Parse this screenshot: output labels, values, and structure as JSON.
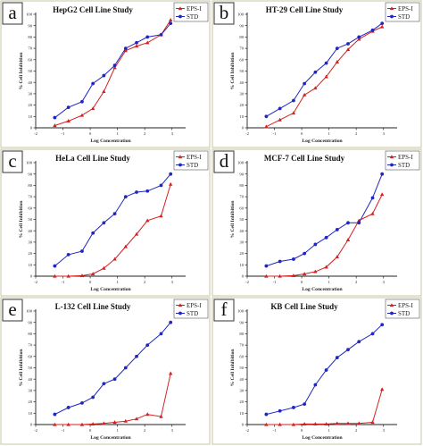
{
  "chart_data": [
    {
      "type": "line",
      "panel": "a",
      "title": "HepG2 Cell Line Study",
      "xlabel": "Log Concentration",
      "ylabel": "% Cell Inhibition",
      "xlim": [
        -2,
        3.5
      ],
      "ylim": [
        0,
        100
      ],
      "xticks": [
        -2,
        -1,
        0,
        1,
        2,
        3
      ],
      "yticks": [
        0,
        10,
        20,
        30,
        40,
        50,
        60,
        70,
        80,
        90,
        100
      ],
      "legend_position": "top-right",
      "x": [
        -1.3,
        -0.8,
        -0.3,
        0.1,
        0.5,
        0.9,
        1.3,
        1.7,
        2.1,
        2.6,
        2.95
      ],
      "series": [
        {
          "name": "EPS-I",
          "color": "#d42020",
          "marker": "triangle",
          "values": [
            2,
            6,
            11,
            17,
            32,
            53,
            68,
            72,
            75,
            82,
            95
          ]
        },
        {
          "name": "STD",
          "color": "#2026c0",
          "marker": "circle",
          "values": [
            9,
            18,
            23,
            39,
            46,
            55,
            70,
            75,
            80,
            82,
            92
          ]
        }
      ]
    },
    {
      "type": "line",
      "panel": "b",
      "title": "HT-29 Cell Line Study",
      "xlabel": "Log Concentration",
      "ylabel": "% Cell Inhibition",
      "xlim": [
        -2,
        3.5
      ],
      "ylim": [
        0,
        100
      ],
      "xticks": [
        -2,
        -1,
        0,
        1,
        2,
        3
      ],
      "yticks": [
        0,
        10,
        20,
        30,
        40,
        50,
        60,
        70,
        80,
        90,
        100
      ],
      "legend_position": "top-right",
      "x": [
        -1.3,
        -0.8,
        -0.3,
        0.1,
        0.5,
        0.9,
        1.3,
        1.7,
        2.1,
        2.6,
        2.95
      ],
      "series": [
        {
          "name": "EPS-I",
          "color": "#d42020",
          "marker": "triangle",
          "values": [
            1,
            7,
            13,
            29,
            35,
            45,
            58,
            69,
            78,
            85,
            89
          ]
        },
        {
          "name": "STD",
          "color": "#2026c0",
          "marker": "circle",
          "values": [
            10,
            17,
            24,
            39,
            49,
            57,
            70,
            74,
            80,
            86,
            92
          ]
        }
      ]
    },
    {
      "type": "line",
      "panel": "c",
      "title": "HeLa Cell Line Study",
      "xlabel": "Log Concentration",
      "ylabel": "% Cell Inhibition",
      "xlim": [
        -2,
        3.5
      ],
      "ylim": [
        0,
        100
      ],
      "xticks": [
        -2,
        -1,
        0,
        1,
        2,
        3
      ],
      "yticks": [
        0,
        10,
        20,
        30,
        40,
        50,
        60,
        70,
        80,
        90,
        100
      ],
      "legend_position": "top-right",
      "x": [
        -1.3,
        -0.8,
        -0.3,
        0.1,
        0.5,
        0.9,
        1.3,
        1.7,
        2.1,
        2.6,
        2.95
      ],
      "series": [
        {
          "name": "EPS-I",
          "color": "#d42020",
          "marker": "triangle",
          "values": [
            0,
            0,
            0.5,
            2,
            7,
            15,
            26,
            37,
            49,
            53,
            81
          ]
        },
        {
          "name": "STD",
          "color": "#2026c0",
          "marker": "circle",
          "values": [
            9,
            19,
            22,
            38,
            47,
            55,
            70,
            74,
            75,
            80,
            90
          ]
        }
      ]
    },
    {
      "type": "line",
      "panel": "d",
      "title": "MCF-7 Cell Line Study",
      "xlabel": "Log Concentration",
      "ylabel": "% Cell Inhibition",
      "xlim": [
        -2,
        3.5
      ],
      "ylim": [
        0,
        100
      ],
      "xticks": [
        -2,
        -1,
        0,
        1,
        2,
        3
      ],
      "yticks": [
        0,
        10,
        20,
        30,
        40,
        50,
        60,
        70,
        80,
        90,
        100
      ],
      "legend_position": "top-right",
      "x": [
        -1.3,
        -0.8,
        -0.3,
        0.1,
        0.5,
        0.9,
        1.3,
        1.7,
        2.1,
        2.6,
        2.95
      ],
      "series": [
        {
          "name": "EPS-I",
          "color": "#d42020",
          "marker": "triangle",
          "values": [
            0,
            0,
            0.5,
            2,
            4,
            8,
            17,
            32,
            49,
            55,
            72
          ]
        },
        {
          "name": "STD",
          "color": "#2026c0",
          "marker": "circle",
          "values": [
            9,
            13,
            15,
            20,
            28,
            34,
            41,
            47,
            47,
            69,
            90
          ]
        }
      ]
    },
    {
      "type": "line",
      "panel": "e",
      "title": "L-132 Cell Line Study",
      "xlabel": "Log Concentration",
      "ylabel": "% Cell Inhibition",
      "xlim": [
        -2,
        3.5
      ],
      "ylim": [
        0,
        100
      ],
      "xticks": [
        -2,
        -1,
        0,
        1,
        2,
        3
      ],
      "yticks": [
        0,
        10,
        20,
        30,
        40,
        50,
        60,
        70,
        80,
        90,
        100
      ],
      "legend_position": "top-right",
      "x": [
        -1.3,
        -0.8,
        -0.3,
        0.1,
        0.5,
        0.9,
        1.3,
        1.7,
        2.1,
        2.6,
        2.95
      ],
      "series": [
        {
          "name": "EPS-I",
          "color": "#d42020",
          "marker": "triangle",
          "values": [
            0,
            0,
            0,
            0.5,
            1,
            2,
            3,
            5,
            9,
            7,
            45
          ]
        },
        {
          "name": "STD",
          "color": "#2026c0",
          "marker": "circle",
          "values": [
            9,
            15,
            19,
            24,
            36,
            40,
            50,
            60,
            70,
            80,
            90
          ]
        }
      ]
    },
    {
      "type": "line",
      "panel": "f",
      "title": "KB Cell Line Study",
      "xlabel": "Log Concentration",
      "ylabel": "% Cell Inhibition",
      "xlim": [
        -2,
        3.5
      ],
      "ylim": [
        0,
        100
      ],
      "xticks": [
        -2,
        -1,
        0,
        1,
        2,
        3
      ],
      "yticks": [
        0,
        10,
        20,
        30,
        40,
        50,
        60,
        70,
        80,
        90,
        100
      ],
      "legend_position": "top-right",
      "x": [
        -1.3,
        -0.8,
        -0.3,
        0.1,
        0.5,
        0.9,
        1.3,
        1.7,
        2.1,
        2.6,
        2.95
      ],
      "series": [
        {
          "name": "EPS-I",
          "color": "#d42020",
          "marker": "triangle",
          "values": [
            0,
            0,
            0,
            0.5,
            0.5,
            0.5,
            1,
            1,
            1,
            2,
            31
          ]
        },
        {
          "name": "STD",
          "color": "#2026c0",
          "marker": "circle",
          "values": [
            9,
            12,
            15,
            18,
            35,
            48,
            59,
            66,
            73,
            80,
            88
          ]
        }
      ]
    }
  ]
}
